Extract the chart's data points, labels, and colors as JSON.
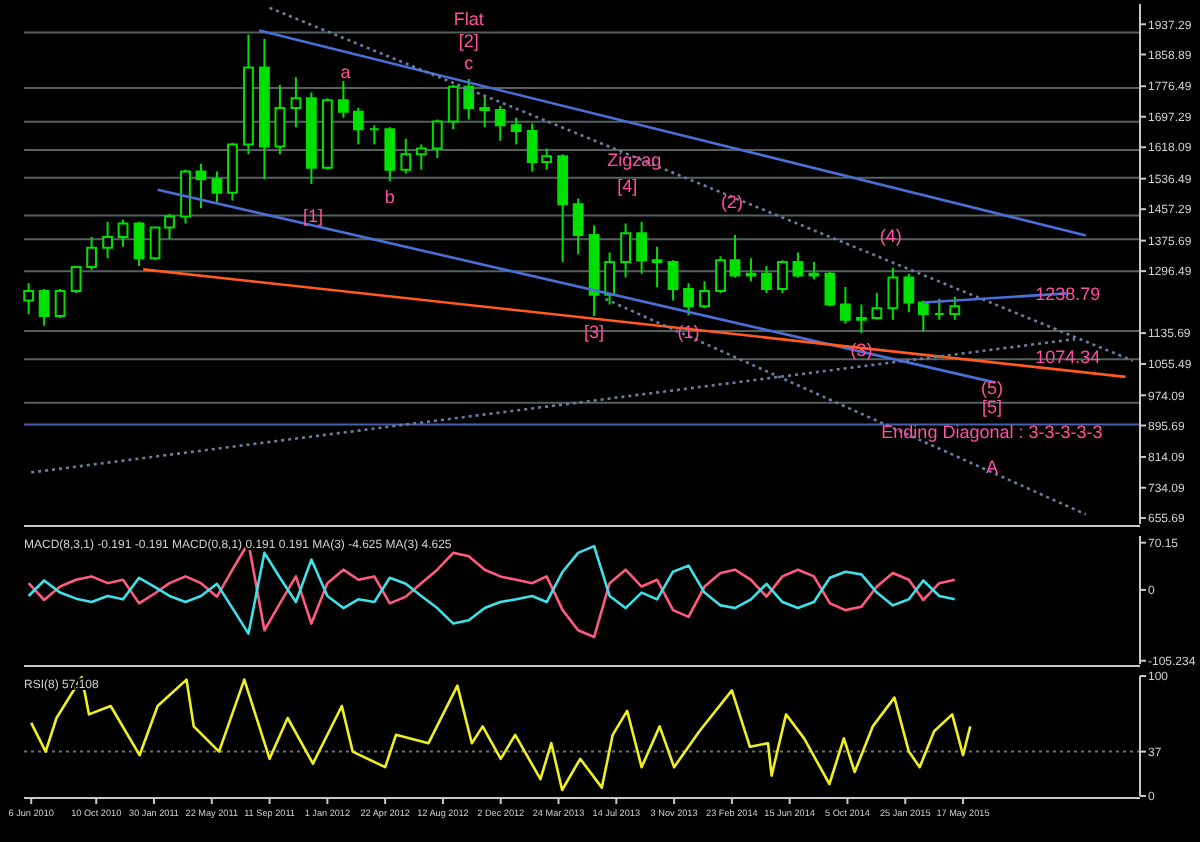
{
  "chart_data": [
    {
      "type": "candlestick",
      "color": "#00e000",
      "tick_labels": "y",
      "xlim": [
        "2010-05-23",
        "2016-04-24"
      ],
      "ylim": [
        640,
        1990
      ],
      "yticks": [
        655.69,
        734.09,
        814.09,
        895.69,
        974.09,
        1055.49,
        1135.69,
        1296.49,
        1375.69,
        1457.29,
        1536.49,
        1618.09,
        1697.29,
        1776.49,
        1858.89,
        1937.29
      ],
      "x": [
        "2010-06",
        "2010-07",
        "2010-08",
        "2010-09",
        "2010-10",
        "2010-11",
        "2010-12",
        "2011-01",
        "2011-02",
        "2011-03",
        "2011-04",
        "2011-05",
        "2011-06",
        "2011-07",
        "2011-08",
        "2011-09",
        "2011-10",
        "2011-11",
        "2011-12",
        "2012-01",
        "2012-02",
        "2012-03",
        "2012-04",
        "2012-05",
        "2012-06",
        "2012-07",
        "2012-08",
        "2012-09",
        "2012-10",
        "2012-11",
        "2012-12",
        "2013-01",
        "2013-02",
        "2013-03",
        "2013-04",
        "2013-05",
        "2013-06",
        "2013-07",
        "2013-08",
        "2013-09",
        "2013-10",
        "2013-11",
        "2013-12",
        "2014-01",
        "2014-02",
        "2014-03",
        "2014-04",
        "2014-05",
        "2014-06",
        "2014-07",
        "2014-08",
        "2014-09",
        "2014-10",
        "2014-11",
        "2014-12",
        "2015-01",
        "2015-02",
        "2015-03",
        "2015-04",
        "2015-05"
      ],
      "ohlc": [
        [
          1220,
          1265,
          1185,
          1245
        ],
        [
          1245,
          1250,
          1155,
          1180
        ],
        [
          1180,
          1250,
          1175,
          1245
        ],
        [
          1245,
          1310,
          1240,
          1307
        ],
        [
          1307,
          1385,
          1300,
          1357
        ],
        [
          1357,
          1425,
          1330,
          1385
        ],
        [
          1385,
          1430,
          1360,
          1420
        ],
        [
          1420,
          1425,
          1310,
          1330
        ],
        [
          1330,
          1410,
          1325,
          1410
        ],
        [
          1410,
          1445,
          1380,
          1438
        ],
        [
          1438,
          1560,
          1420,
          1555
        ],
        [
          1555,
          1575,
          1460,
          1535
        ],
        [
          1535,
          1555,
          1475,
          1500
        ],
        [
          1500,
          1630,
          1480,
          1625
        ],
        [
          1625,
          1911,
          1600,
          1825
        ],
        [
          1825,
          1900,
          1535,
          1620
        ],
        [
          1620,
          1780,
          1600,
          1720
        ],
        [
          1720,
          1800,
          1670,
          1745
        ],
        [
          1745,
          1760,
          1523,
          1565
        ],
        [
          1565,
          1745,
          1560,
          1740
        ],
        [
          1740,
          1790,
          1695,
          1710
        ],
        [
          1710,
          1720,
          1625,
          1665
        ],
        [
          1665,
          1675,
          1625,
          1665
        ],
        [
          1665,
          1670,
          1530,
          1560
        ],
        [
          1560,
          1640,
          1550,
          1600
        ],
        [
          1600,
          1625,
          1560,
          1615
        ],
        [
          1615,
          1690,
          1590,
          1685
        ],
        [
          1685,
          1780,
          1665,
          1775
        ],
        [
          1775,
          1795,
          1690,
          1720
        ],
        [
          1720,
          1750,
          1670,
          1715
        ],
        [
          1715,
          1725,
          1635,
          1675
        ],
        [
          1675,
          1695,
          1625,
          1660
        ],
        [
          1660,
          1680,
          1555,
          1580
        ],
        [
          1580,
          1615,
          1560,
          1595
        ],
        [
          1595,
          1600,
          1320,
          1470
        ],
        [
          1470,
          1485,
          1340,
          1390
        ],
        [
          1390,
          1415,
          1180,
          1235
        ],
        [
          1235,
          1345,
          1210,
          1320
        ],
        [
          1320,
          1420,
          1280,
          1395
        ],
        [
          1395,
          1425,
          1290,
          1325
        ],
        [
          1325,
          1360,
          1255,
          1320
        ],
        [
          1320,
          1325,
          1220,
          1250
        ],
        [
          1250,
          1265,
          1182,
          1205
        ],
        [
          1205,
          1270,
          1200,
          1245
        ],
        [
          1245,
          1335,
          1240,
          1325
        ],
        [
          1325,
          1390,
          1280,
          1285
        ],
        [
          1285,
          1330,
          1270,
          1290
        ],
        [
          1290,
          1310,
          1240,
          1250
        ],
        [
          1250,
          1325,
          1240,
          1320
        ],
        [
          1320,
          1345,
          1280,
          1285
        ],
        [
          1285,
          1320,
          1275,
          1290
        ],
        [
          1290,
          1295,
          1205,
          1210
        ],
        [
          1210,
          1255,
          1160,
          1170
        ],
        [
          1170,
          1210,
          1135,
          1175
        ],
        [
          1175,
          1240,
          1170,
          1200
        ],
        [
          1200,
          1305,
          1170,
          1280
        ],
        [
          1280,
          1290,
          1190,
          1215
        ],
        [
          1215,
          1220,
          1140,
          1185
        ],
        [
          1185,
          1225,
          1170,
          1185
        ],
        [
          1185,
          1230,
          1170,
          1205
        ]
      ],
      "series": [
        {
          "type": "line",
          "color": "#4a6fd6",
          "x": [
            "2011-08-22",
            "2016-01-10"
          ],
          "values": [
            1921,
            1389
          ]
        },
        {
          "type": "line",
          "color": "#4a6fd6",
          "x": [
            "2011-02-06",
            "2015-07-19"
          ],
          "values": [
            1508,
            1007
          ]
        },
        {
          "type": "line",
          "color": "#ff5a1f",
          "x": [
            "2011-01-09",
            "2016-03-27"
          ],
          "values": [
            1301,
            1022
          ]
        },
        {
          "type": "line",
          "color": "#6a7fa0",
          "line_style": "dotted",
          "x": [
            "2011-09-11",
            "2016-04-10"
          ],
          "values": [
            1980,
            1064
          ]
        },
        {
          "type": "line",
          "color": "#6a7fa0",
          "line_style": "dotted",
          "x": [
            "2010-06-06",
            "2015-12-20"
          ],
          "values": [
            774,
            1120
          ]
        },
        {
          "type": "line",
          "color": "#6a7fa0",
          "line_style": "dotted",
          "x": [
            "2013-06-23",
            "2016-01-10"
          ],
          "values": [
            1224,
            665
          ]
        },
        {
          "type": "line",
          "color": "#4a6fd6",
          "x": [
            "2015-03-01",
            "2015-12-06"
          ],
          "values": [
            1215,
            1238.79
          ]
        }
      ],
      "ref_lines": [
        {
          "axis": "y",
          "value": 1916,
          "color": "#55605f"
        },
        {
          "axis": "y",
          "value": 1772,
          "color": "#55605f"
        },
        {
          "axis": "y",
          "value": 1684,
          "color": "#55605f"
        },
        {
          "axis": "y",
          "value": 1611,
          "color": "#55605f"
        },
        {
          "axis": "y",
          "value": 1539,
          "color": "#55605f"
        },
        {
          "axis": "y",
          "value": 1441,
          "color": "#55605f"
        },
        {
          "axis": "y",
          "value": 1379,
          "color": "#55605f"
        },
        {
          "axis": "y",
          "value": 1296,
          "color": "#55605f"
        },
        {
          "axis": "y",
          "value": 1141,
          "color": "#55605f"
        },
        {
          "axis": "y",
          "value": 1068,
          "color": "#55605f"
        },
        {
          "axis": "y",
          "value": 955,
          "color": "#55605f"
        },
        {
          "axis": "y",
          "value": 898,
          "color": "#4a5fb0"
        }
      ],
      "annotations": [
        {
          "text": "c",
          "x": "2012-10",
          "y": 1795
        },
        {
          "text": "[2]",
          "x": "2012-10",
          "y": 1795
        },
        {
          "text": "Flat",
          "x": "2012-10",
          "y": 1795
        },
        {
          "text": "a",
          "x": "2012-02-05",
          "y": 1813
        },
        {
          "text": "b",
          "x": "2012-05",
          "y": 1530
        },
        {
          "text": "[1]",
          "x": "2011-12-04",
          "y": 1441
        },
        {
          "text": "Zigzag",
          "x": "2013-08-18",
          "y": 1585
        },
        {
          "text": "[4]",
          "x": "2013-08-04",
          "y": 1518
        },
        {
          "text": "(2)",
          "x": "2014-02-23",
          "y": 1477
        },
        {
          "text": "(4)",
          "x": "2014-12-28",
          "y": 1389
        },
        {
          "text": "[3]",
          "x": "2013-06",
          "y": 1180
        },
        {
          "text": "(1)",
          "x": "2013-12",
          "y": 1182
        },
        {
          "text": "(3)",
          "x": "2014-11",
          "y": 1135
        },
        {
          "text": "(5)",
          "x": "2015-07-12",
          "y": 995
        },
        {
          "text": "[5]",
          "x": "2015-07-12",
          "y": 945
        },
        {
          "text": "1238.79",
          "x": "2015-12-06",
          "y": 1238.79
        },
        {
          "text": "1074.34",
          "x": "2015-12-06",
          "y": 1074.34
        },
        {
          "text": "Ending Diagonal : 3-3-3-3-3",
          "x": "2015-07-12",
          "y": 880
        },
        {
          "text": "A",
          "x": "2015-07-12",
          "y": 790
        }
      ]
    },
    {
      "type": "line",
      "title": "MACD(8,3,1) -0.191 -0.191 MACD(0,8,1) 0.191 0.191 MA(3) -4.625 MA(3) 4.625",
      "tick_labels": "y",
      "xlim": [
        "2010-05-23",
        "2016-04-24"
      ],
      "ylim": [
        -110,
        80
      ],
      "yticks": [
        -105.234,
        0,
        70.15
      ],
      "x": [
        "2010-06",
        "2010-07",
        "2010-08",
        "2010-09",
        "2010-10",
        "2010-11",
        "2010-12",
        "2011-01",
        "2011-02",
        "2011-03",
        "2011-04",
        "2011-05",
        "2011-06",
        "2011-07",
        "2011-08",
        "2011-09",
        "2011-10",
        "2011-11",
        "2011-12",
        "2012-01",
        "2012-02",
        "2012-03",
        "2012-04",
        "2012-05",
        "2012-06",
        "2012-07",
        "2012-08",
        "2012-09",
        "2012-10",
        "2012-11",
        "2012-12",
        "2013-01",
        "2013-02",
        "2013-03",
        "2013-04",
        "2013-05",
        "2013-06",
        "2013-07",
        "2013-08",
        "2013-09",
        "2013-10",
        "2013-11",
        "2013-12",
        "2014-01",
        "2014-02",
        "2014-03",
        "2014-04",
        "2014-05",
        "2014-06",
        "2014-07",
        "2014-08",
        "2014-09",
        "2014-10",
        "2014-11",
        "2014-12",
        "2015-01",
        "2015-02",
        "2015-03",
        "2015-04",
        "2015-05"
      ],
      "series": [
        {
          "color": "#ff5a80",
          "values": [
            10,
            -15,
            5,
            15,
            20,
            10,
            15,
            -20,
            -5,
            10,
            20,
            10,
            -10,
            30,
            70,
            -60,
            -20,
            20,
            -50,
            10,
            30,
            15,
            20,
            -20,
            -10,
            10,
            30,
            55,
            50,
            30,
            20,
            15,
            10,
            20,
            -30,
            -60,
            -70,
            10,
            30,
            5,
            15,
            -30,
            -40,
            5,
            25,
            30,
            15,
            -10,
            20,
            30,
            20,
            -20,
            -30,
            -25,
            5,
            25,
            15,
            -15,
            10,
            15
          ]
        },
        {
          "color": "#40e0e8",
          "values": [
            -9,
            14,
            -4,
            -13,
            -18,
            -9,
            -14,
            18,
            4,
            -9,
            -18,
            -9,
            9,
            -27,
            -65,
            55,
            18,
            -18,
            45,
            -9,
            -27,
            -14,
            -18,
            18,
            9,
            -9,
            -27,
            -50,
            -45,
            -27,
            -18,
            -14,
            -9,
            -18,
            27,
            55,
            65,
            -9,
            -27,
            -4,
            -14,
            27,
            36,
            -4,
            -23,
            -27,
            -14,
            9,
            -18,
            -27,
            -18,
            18,
            27,
            23,
            -4,
            -23,
            -14,
            14,
            -9,
            -14
          ]
        }
      ]
    },
    {
      "type": "line",
      "title": "RSI(8) 57.108",
      "xlim": [
        "2010-05-23",
        "2016-04-24"
      ],
      "ylim": [
        0,
        100
      ],
      "yticks": [
        0,
        37,
        100
      ],
      "xticks": [
        {
          "value": "2010-06-06",
          "label": "6 Jun 2010"
        },
        {
          "value": "2010-10-10",
          "label": "10 Oct 2010"
        },
        {
          "value": "2011-01-30",
          "label": "30 Jan 2011"
        },
        {
          "value": "2011-05-22",
          "label": "22 May 2011"
        },
        {
          "value": "2011-09-11",
          "label": "11 Sep 2011"
        },
        {
          "value": "2012-01-01",
          "label": "1 Jan 2012"
        },
        {
          "value": "2012-04-22",
          "label": "22 Apr 2012"
        },
        {
          "value": "2012-08-12",
          "label": "12 Aug 2012"
        },
        {
          "value": "2012-12-02",
          "label": "2 Dec 2012"
        },
        {
          "value": "2013-03-24",
          "label": "24 Mar 2013"
        },
        {
          "value": "2013-07-14",
          "label": "14 Jul 2013"
        },
        {
          "value": "2013-11-03",
          "label": "3 Nov 2013"
        },
        {
          "value": "2014-02-23",
          "label": "23 Feb 2014"
        },
        {
          "value": "2014-06-15",
          "label": "15 Jun 2014"
        },
        {
          "value": "2014-10-05",
          "label": "5 Oct 2014"
        },
        {
          "value": "2015-01-25",
          "label": "25 Jan 2015"
        },
        {
          "value": "2015-05-17",
          "label": "17 May 2015"
        }
      ],
      "ref_lines": [
        {
          "axis": "y",
          "value": 37,
          "color": "#707070",
          "line_style": "dotted"
        }
      ],
      "series": [
        {
          "color": "#f0f020",
          "x": [
            "2010-06-06",
            "2010-07-04",
            "2010-07-25",
            "2010-09-12",
            "2010-09-26",
            "2010-11-07",
            "2011-01-02",
            "2011-02-06",
            "2011-04-03",
            "2011-04-17",
            "2011-06-05",
            "2011-07-24",
            "2011-09-11",
            "2011-10-16",
            "2011-12-04",
            "2012-01-29",
            "2012-02-19",
            "2012-04-22",
            "2012-05-13",
            "2012-07-15",
            "2012-09-09",
            "2012-10-07",
            "2012-10-28",
            "2012-12-02",
            "2012-12-30",
            "2013-02-17",
            "2013-03-10",
            "2013-03-31",
            "2013-05-05",
            "2013-06-16",
            "2013-07-07",
            "2013-08-04",
            "2013-09-01",
            "2013-10-06",
            "2013-11-03",
            "2013-12-22",
            "2014-02-23",
            "2014-03-30",
            "2014-05-04",
            "2014-05-11",
            "2014-06-08",
            "2014-07-13",
            "2014-08-31",
            "2014-09-28",
            "2014-10-19",
            "2014-11-23",
            "2015-01-04",
            "2015-02-01",
            "2015-02-22",
            "2015-03-22",
            "2015-04-26",
            "2015-05-17",
            "2015-05-31"
          ],
          "values": [
            61,
            37,
            65,
            99,
            68,
            75,
            34,
            75,
            97,
            58,
            37,
            97,
            31,
            65,
            27,
            75,
            37,
            24,
            51,
            44,
            92,
            44,
            58,
            31,
            51,
            14,
            44,
            5,
            31,
            7,
            51,
            71,
            24,
            58,
            24,
            54,
            88,
            41,
            44,
            17,
            68,
            48,
            10,
            48,
            20,
            58,
            82,
            37,
            24,
            54,
            68,
            34,
            58
          ]
        }
      ]
    }
  ]
}
